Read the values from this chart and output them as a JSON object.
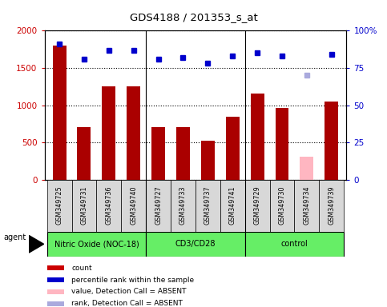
{
  "title": "GDS4188 / 201353_s_at",
  "samples": [
    "GSM349725",
    "GSM349731",
    "GSM349736",
    "GSM349740",
    "GSM349727",
    "GSM349733",
    "GSM349737",
    "GSM349741",
    "GSM349729",
    "GSM349730",
    "GSM349734",
    "GSM349739"
  ],
  "counts": [
    1800,
    710,
    1250,
    1250,
    700,
    710,
    520,
    840,
    1160,
    960,
    310,
    1050
  ],
  "absent_bar": [
    false,
    false,
    false,
    false,
    false,
    false,
    false,
    false,
    false,
    false,
    true,
    false
  ],
  "percentile_ranks": [
    91,
    81,
    87,
    87,
    81,
    82,
    78,
    83,
    85,
    83,
    70,
    84
  ],
  "absent_rank": [
    false,
    false,
    false,
    false,
    false,
    false,
    false,
    false,
    false,
    false,
    true,
    false
  ],
  "groups": [
    {
      "label": "Nitric Oxide (NOC-18)",
      "start": 0,
      "end": 4
    },
    {
      "label": "CD3/CD28",
      "start": 4,
      "end": 8
    },
    {
      "label": "control",
      "start": 8,
      "end": 12
    }
  ],
  "ylim_left": [
    0,
    2000
  ],
  "ylim_right": [
    0,
    100
  ],
  "yticks_left": [
    0,
    500,
    1000,
    1500,
    2000
  ],
  "ytick_labels_left": [
    "0",
    "500",
    "1000",
    "1500",
    "2000"
  ],
  "yticks_right": [
    0,
    25,
    50,
    75,
    100
  ],
  "ytick_labels_right": [
    "0",
    "25",
    "50",
    "75",
    "100%"
  ],
  "bar_color": "#aa0000",
  "absent_bar_color": "#ffb6c1",
  "dot_color": "#0000cc",
  "absent_dot_color": "#aaaadd",
  "plot_bg_color": "#ffffff",
  "sample_box_color": "#d8d8d8",
  "group_bg_color": "#66ee66",
  "agent_label": "agent",
  "legend_items": [
    {
      "color": "#cc0000",
      "marker": "square",
      "label": "count"
    },
    {
      "color": "#0000cc",
      "marker": "square",
      "label": "percentile rank within the sample"
    },
    {
      "color": "#ffb6c1",
      "marker": "square",
      "label": "value, Detection Call = ABSENT"
    },
    {
      "color": "#aaaadd",
      "marker": "square",
      "label": "rank, Detection Call = ABSENT"
    }
  ]
}
